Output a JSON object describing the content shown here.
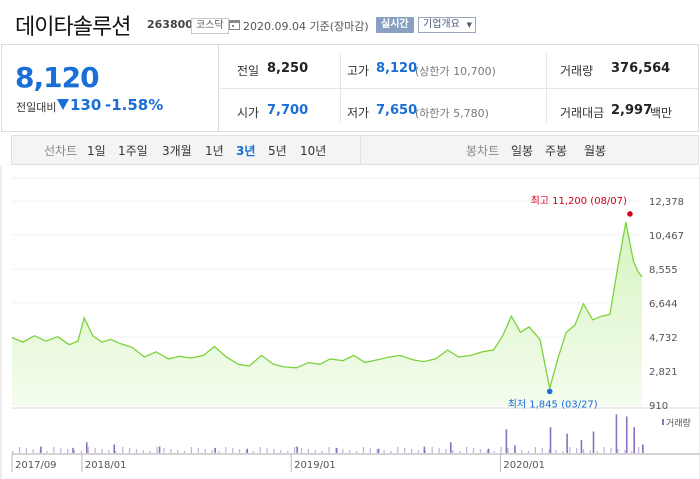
{
  "header": {
    "company_name": "데이타솔루션",
    "stock_code": "263800",
    "market": "코스닥",
    "date_text": "2020.09.04 기준(장마감)",
    "realtime_label": "실시간",
    "overview_label": "기업개요"
  },
  "price": {
    "current": "8,120",
    "change_label": "전일대비",
    "change_amount": "130",
    "change_percent": "-1.58%"
  },
  "stats": {
    "prev_close_label": "전일",
    "prev_close": "8,250",
    "high_label": "고가",
    "high": "8,120",
    "upper_limit": "(상한가 10,700)",
    "volume_label": "거래량",
    "volume": "376,564",
    "open_label": "시가",
    "open": "7,700",
    "low_label": "저가",
    "low": "7,650",
    "lower_limit": "(하한가 5,780)",
    "trade_value_label": "거래대금",
    "trade_value": "2,997",
    "trade_value_unit": "백만"
  },
  "tabs": {
    "line_chart_label": "선차트",
    "line_periods": [
      "1일",
      "1주일",
      "3개월",
      "1년",
      "3년",
      "5년",
      "10년"
    ],
    "active_period": "3년",
    "candle_chart_label": "봉차트",
    "candle_periods": [
      "일봉",
      "주봉",
      "월봉"
    ]
  },
  "colors": {
    "accent": "#1a6fd6",
    "line": "#7cd23c",
    "area": "#e6f8d9",
    "volume_bar": "#8c6fc0",
    "high_marker": "#d0021b"
  },
  "chart_data": {
    "type": "area",
    "y_ticks": [
      "12,378",
      "10,467",
      "8,555",
      "6,644",
      "4,732",
      "2,821",
      "910"
    ],
    "ylim": [
      910,
      12378
    ],
    "x_ticks": [
      "2017/09",
      "2018/01",
      "2019/01",
      "2020/01"
    ],
    "x_tick_dates": [
      "2017-09-01",
      "2018-01-01",
      "2019-01-01",
      "2020-01-01"
    ],
    "xlim": [
      "2017-09-01",
      "2020-09-04"
    ],
    "annotations": {
      "high": {
        "label": "최고 11,200 (08/07)",
        "date": "2020-08-07",
        "value": 11200
      },
      "low": {
        "label": "최저 1,845 (03/27)",
        "date": "2020-03-27",
        "value": 1845
      }
    },
    "volume_legend": "거래량",
    "series": [
      {
        "dates": [
          "2017-09-01",
          "2017-09-20",
          "2017-10-10",
          "2017-10-30",
          "2017-11-20",
          "2017-12-10",
          "2017-12-25",
          "2018-01-05",
          "2018-01-20",
          "2018-02-05",
          "2018-02-20",
          "2018-03-10",
          "2018-03-30",
          "2018-04-20",
          "2018-05-10",
          "2018-06-01",
          "2018-06-20",
          "2018-07-10",
          "2018-08-01",
          "2018-08-20",
          "2018-09-10",
          "2018-10-01",
          "2018-10-20",
          "2018-11-10",
          "2018-12-01",
          "2018-12-20",
          "2019-01-10",
          "2019-02-01",
          "2019-02-20",
          "2019-03-10",
          "2019-04-01",
          "2019-04-20",
          "2019-05-10",
          "2019-06-01",
          "2019-06-20",
          "2019-07-10",
          "2019-08-01",
          "2019-08-20",
          "2019-09-10",
          "2019-10-01",
          "2019-10-20",
          "2019-11-10",
          "2019-12-01",
          "2019-12-20",
          "2020-01-05",
          "2020-01-20",
          "2020-02-05",
          "2020-02-20",
          "2020-03-10",
          "2020-03-27",
          "2020-04-10",
          "2020-04-25",
          "2020-05-10",
          "2020-05-25",
          "2020-06-10",
          "2020-06-25",
          "2020-07-10",
          "2020-07-25",
          "2020-08-07",
          "2020-08-20",
          "2020-08-28",
          "2020-09-04"
        ],
        "values": [
          4700,
          4450,
          4800,
          4500,
          4750,
          4300,
          4500,
          5800,
          4800,
          4450,
          4600,
          4350,
          4150,
          3600,
          3900,
          3500,
          3650,
          3550,
          3700,
          4200,
          3600,
          3200,
          3100,
          3700,
          3200,
          3050,
          3000,
          3300,
          3200,
          3500,
          3400,
          3700,
          3300,
          3450,
          3600,
          3700,
          3450,
          3350,
          3500,
          4000,
          3600,
          3700,
          3900,
          4000,
          4800,
          5900,
          5000,
          5300,
          4600,
          1845,
          3500,
          5000,
          5400,
          6600,
          5700,
          5900,
          6000,
          8900,
          11200,
          9000,
          8400,
          8120
        ]
      }
    ],
    "volume": {
      "dates": [
        "2017-10-20",
        "2017-12-15",
        "2018-01-08",
        "2018-02-25",
        "2018-05-15",
        "2018-08-20",
        "2018-10-15",
        "2019-01-10",
        "2019-03-20",
        "2019-06-01",
        "2019-08-20",
        "2019-10-05",
        "2019-12-10",
        "2020-01-10",
        "2020-01-25",
        "2020-03-27",
        "2020-04-25",
        "2020-05-20",
        "2020-06-10",
        "2020-07-20",
        "2020-08-07",
        "2020-08-20",
        "2020-09-04"
      ],
      "values": [
        0.15,
        0.12,
        0.25,
        0.2,
        0.15,
        0.12,
        0.1,
        0.15,
        0.12,
        0.1,
        0.15,
        0.25,
        0.1,
        0.55,
        0.18,
        0.6,
        0.45,
        0.3,
        0.5,
        0.9,
        0.85,
        0.6,
        0.2
      ]
    }
  }
}
